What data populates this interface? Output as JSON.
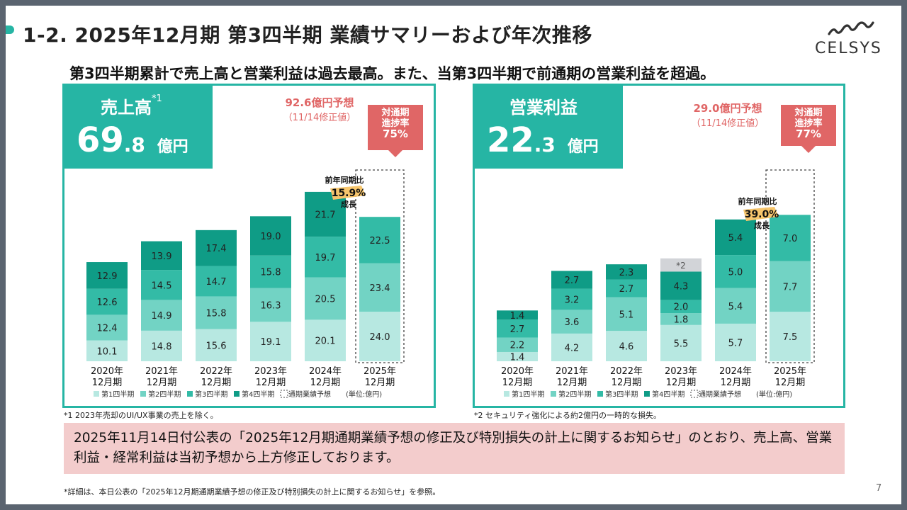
{
  "header": {
    "title": "1-2. 2025年12月期 第3四半期 業績サマリーおよび年次推移",
    "subtitle": "第3四半期累計で売上高と営業利益は過去最高。また、当第3四半期で前通期の営業利益を超過。",
    "logo_text": "CELSYS"
  },
  "colors": {
    "accent": "#26b5a4",
    "q1": "#b7e8e1",
    "q2": "#72d3c4",
    "q3": "#33bba6",
    "q4": "#0f9c86",
    "gray": "#d2d4d8",
    "highlight": "#f6c56c",
    "forecast_red": "#e06666",
    "notice_bg": "#f3cccc"
  },
  "left_panel": {
    "kpi_label": "売上高",
    "kpi_note": "*1",
    "kpi_value_int": "69",
    "kpi_value_dec": ".8",
    "kpi_unit": "億円",
    "forecast_line1": "92.6億円予想",
    "forecast_line2": "（11/14修正値）",
    "progress_line1": "対通期",
    "progress_line2": "進捗率",
    "progress_value": "75%",
    "yoy_line1": "前年同期比",
    "yoy_value": "15.9%",
    "yoy_line2": "成長",
    "footnote": "*1 2023年売却のUI/UX事業の売上を除く。"
  },
  "right_panel": {
    "kpi_label": "営業利益",
    "kpi_value_int": "22",
    "kpi_value_dec": ".3",
    "kpi_unit": "億円",
    "forecast_line1": "29.0億円予想",
    "forecast_line2": "（11/14修正値）",
    "progress_line1": "対通期",
    "progress_line2": "進捗率",
    "progress_value": "77%",
    "yoy_line1": "前年同期比",
    "yoy_value": "39.0%",
    "yoy_line2": "成長",
    "footnote": "*2 セキュリティ強化による約2億円の一時的な損失。"
  },
  "chart_data": [
    {
      "type": "bar",
      "stacked": true,
      "title": "売上高",
      "categories": [
        "2020年\n12月期",
        "2021年\n12月期",
        "2022年\n12月期",
        "2023年\n12月期",
        "2024年\n12月期",
        "2025年\n12月期"
      ],
      "series": [
        {
          "name": "第1四半期",
          "values": [
            10.1,
            14.8,
            15.6,
            19.1,
            20.1,
            24.0
          ]
        },
        {
          "name": "第2四半期",
          "values": [
            12.4,
            14.9,
            15.8,
            16.3,
            20.5,
            23.4
          ]
        },
        {
          "name": "第3四半期",
          "values": [
            12.6,
            14.5,
            14.7,
            15.8,
            19.7,
            22.5
          ]
        },
        {
          "name": "第4四半期",
          "values": [
            12.9,
            13.9,
            17.4,
            19.0,
            21.7,
            null
          ]
        }
      ],
      "forecast": {
        "category_index": 5,
        "value": 92.6,
        "label": "通期業績予想"
      },
      "legend": [
        "第1四半期",
        "第2四半期",
        "第3四半期",
        "第4四半期",
        "通期業績予想"
      ],
      "unit": "(単位:億円)",
      "ylim": [
        0,
        95
      ]
    },
    {
      "type": "bar",
      "stacked": true,
      "title": "営業利益",
      "categories": [
        "2020年\n12月期",
        "2021年\n12月期",
        "2022年\n12月期",
        "2023年\n12月期",
        "2024年\n12月期",
        "2025年\n12月期"
      ],
      "series": [
        {
          "name": "第1四半期",
          "values": [
            1.4,
            4.2,
            4.6,
            5.5,
            5.7,
            7.5
          ]
        },
        {
          "name": "第2四半期",
          "values": [
            2.2,
            3.6,
            5.1,
            1.8,
            5.4,
            7.7
          ]
        },
        {
          "name": "第3四半期",
          "values": [
            2.7,
            3.2,
            2.7,
            2.0,
            5.0,
            7.0
          ]
        },
        {
          "name": "第4四半期",
          "values": [
            1.4,
            2.7,
            2.3,
            4.3,
            5.4,
            null
          ]
        }
      ],
      "extra": {
        "category_index": 3,
        "value": 2.0,
        "label": "*2"
      },
      "forecast": {
        "category_index": 5,
        "value": 29.0,
        "label": "通期業績予想"
      },
      "legend": [
        "第1四半期",
        "第2四半期",
        "第3四半期",
        "第4四半期",
        "通期業績予想"
      ],
      "unit": "(単位:億円)",
      "ylim": [
        0,
        29
      ]
    }
  ],
  "notice": "2025年11月14日付公表の「2025年12月期通期業績予想の修正及び特別損失の計上に関するお知らせ」のとおり、売上高、営業利益・経常利益は当初予想から上方修正しております。",
  "bottom_note": "*詳細は、本日公表の「2025年12月期通期業績予想の修正及び特別損失の計上に関するお知らせ」を参照。",
  "page_number": "7"
}
